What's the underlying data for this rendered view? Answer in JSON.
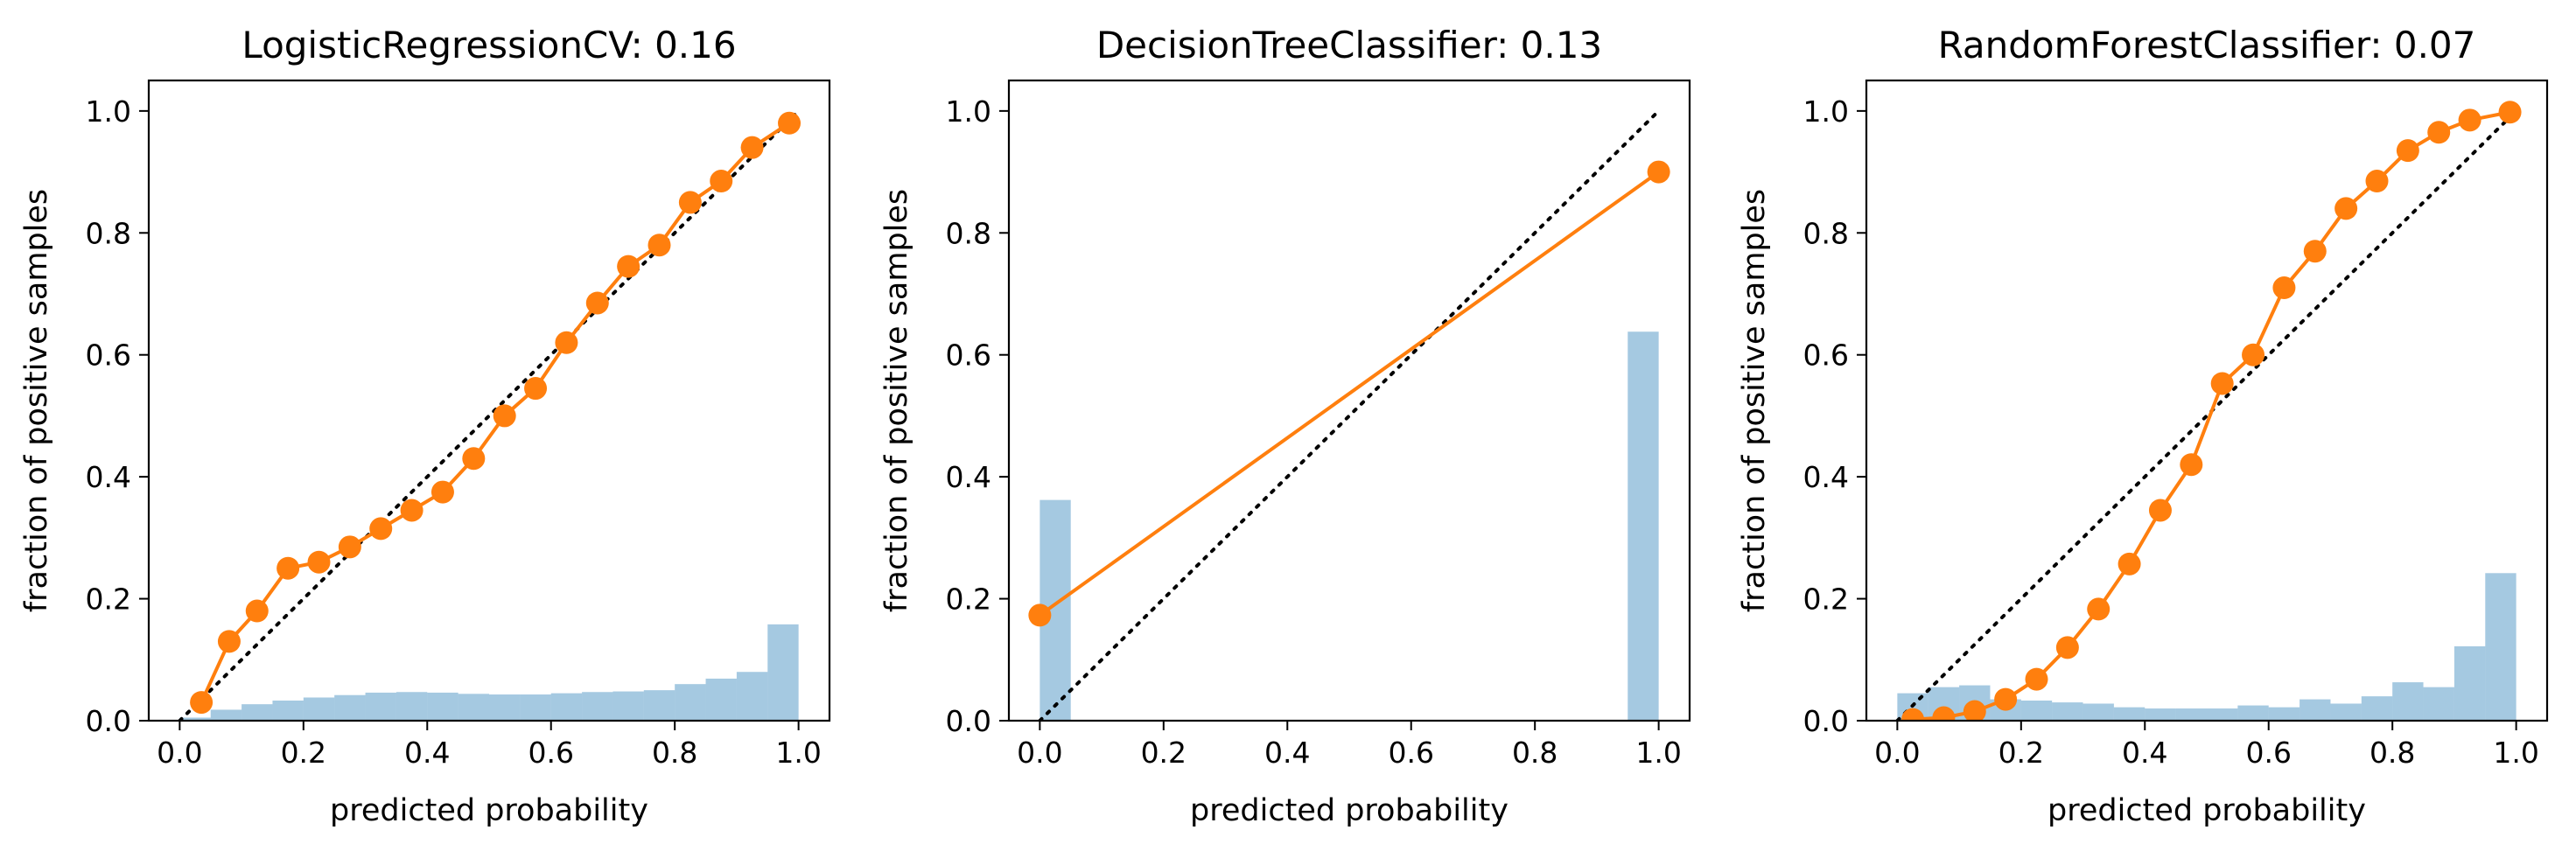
{
  "chart_data": [
    {
      "type": "line",
      "title": "LogisticRegressionCV: 0.16",
      "xlabel": "predicted probability",
      "ylabel": "fraction of positive samples",
      "xlim": [
        -0.05,
        1.05
      ],
      "ylim": [
        0,
        1.05
      ],
      "xticks": [
        0.0,
        0.2,
        0.4,
        0.6,
        0.8,
        1.0
      ],
      "yticks": [
        0.0,
        0.2,
        0.4,
        0.6,
        0.8,
        1.0
      ],
      "reference_line": {
        "x": [
          0,
          1
        ],
        "y": [
          0,
          1
        ],
        "style": "dotted",
        "color": "#000000"
      },
      "calibration_curve": {
        "color": "#ff7f0e",
        "x": [
          0.035,
          0.08,
          0.125,
          0.175,
          0.225,
          0.275,
          0.325,
          0.375,
          0.425,
          0.475,
          0.525,
          0.575,
          0.625,
          0.675,
          0.725,
          0.775,
          0.825,
          0.875,
          0.925,
          0.985
        ],
        "y": [
          0.03,
          0.13,
          0.18,
          0.25,
          0.26,
          0.285,
          0.315,
          0.345,
          0.375,
          0.43,
          0.5,
          0.545,
          0.62,
          0.685,
          0.745,
          0.78,
          0.85,
          0.885,
          0.94,
          0.98
        ]
      },
      "histogram": {
        "color": "#1f77b4",
        "alpha": 0.4,
        "bin_width": 0.05,
        "bin_starts": [
          0.0,
          0.05,
          0.1,
          0.15,
          0.2,
          0.25,
          0.3,
          0.35,
          0.4,
          0.45,
          0.5,
          0.55,
          0.6,
          0.65,
          0.7,
          0.75,
          0.8,
          0.85,
          0.9,
          0.95
        ],
        "values": [
          0.005,
          0.018,
          0.027,
          0.033,
          0.038,
          0.042,
          0.046,
          0.047,
          0.046,
          0.044,
          0.043,
          0.043,
          0.045,
          0.047,
          0.048,
          0.05,
          0.06,
          0.069,
          0.08,
          0.158
        ]
      }
    },
    {
      "type": "line",
      "title": "DecisionTreeClassifier: 0.13",
      "xlabel": "predicted probability",
      "ylabel": "fraction of positive samples",
      "xlim": [
        -0.05,
        1.05
      ],
      "ylim": [
        0,
        1.05
      ],
      "xticks": [
        0.0,
        0.2,
        0.4,
        0.6,
        0.8,
        1.0
      ],
      "yticks": [
        0.0,
        0.2,
        0.4,
        0.6,
        0.8,
        1.0
      ],
      "reference_line": {
        "x": [
          0,
          1
        ],
        "y": [
          0,
          1
        ],
        "style": "dotted",
        "color": "#000000"
      },
      "calibration_curve": {
        "color": "#ff7f0e",
        "x": [
          0.0,
          1.0
        ],
        "y": [
          0.173,
          0.9
        ]
      },
      "histogram": {
        "color": "#1f77b4",
        "alpha": 0.4,
        "bin_width": 0.05,
        "bin_starts": [
          0.0,
          0.95
        ],
        "values": [
          0.362,
          0.638
        ]
      }
    },
    {
      "type": "line",
      "title": "RandomForestClassifier: 0.07",
      "xlabel": "predicted probability",
      "ylabel": "fraction of positive samples",
      "xlim": [
        -0.05,
        1.05
      ],
      "ylim": [
        0,
        1.05
      ],
      "xticks": [
        0.0,
        0.2,
        0.4,
        0.6,
        0.8,
        1.0
      ],
      "yticks": [
        0.0,
        0.2,
        0.4,
        0.6,
        0.8,
        1.0
      ],
      "reference_line": {
        "x": [
          0,
          1
        ],
        "y": [
          0,
          1
        ],
        "style": "dotted",
        "color": "#000000"
      },
      "calibration_curve": {
        "color": "#ff7f0e",
        "x": [
          0.025,
          0.075,
          0.125,
          0.175,
          0.225,
          0.275,
          0.325,
          0.375,
          0.425,
          0.475,
          0.525,
          0.575,
          0.625,
          0.675,
          0.725,
          0.775,
          0.825,
          0.875,
          0.925,
          0.99
        ],
        "y": [
          0.002,
          0.005,
          0.015,
          0.035,
          0.068,
          0.12,
          0.183,
          0.257,
          0.345,
          0.42,
          0.553,
          0.6,
          0.71,
          0.77,
          0.84,
          0.885,
          0.935,
          0.965,
          0.985,
          0.998
        ]
      },
      "histogram": {
        "color": "#1f77b4",
        "alpha": 0.4,
        "bin_width": 0.05,
        "bin_starts": [
          0.0,
          0.05,
          0.1,
          0.15,
          0.2,
          0.25,
          0.3,
          0.35,
          0.4,
          0.45,
          0.5,
          0.55,
          0.6,
          0.65,
          0.7,
          0.75,
          0.8,
          0.85,
          0.9,
          0.95
        ],
        "values": [
          0.045,
          0.055,
          0.058,
          0.035,
          0.033,
          0.03,
          0.028,
          0.022,
          0.02,
          0.02,
          0.02,
          0.025,
          0.022,
          0.035,
          0.028,
          0.04,
          0.063,
          0.055,
          0.122,
          0.242
        ]
      }
    }
  ]
}
